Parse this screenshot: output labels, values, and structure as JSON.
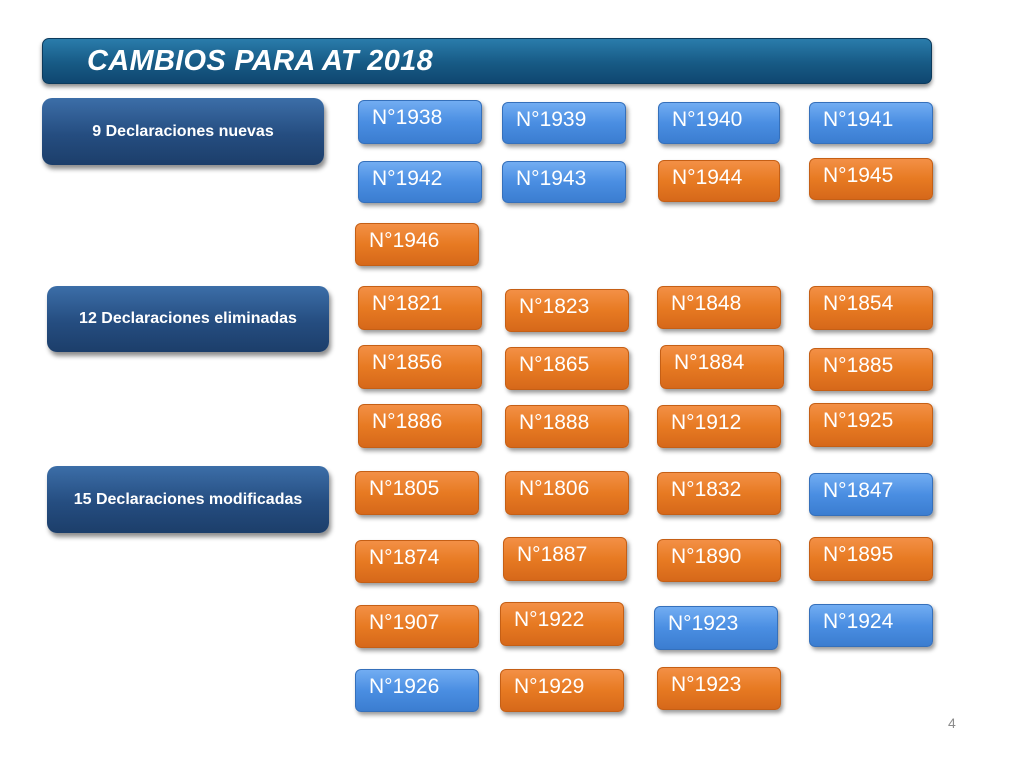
{
  "title": "CAMBIOS PARA AT 2018",
  "categories": [
    {
      "label": "9 Declaraciones nuevas"
    },
    {
      "label": "12 Declaraciones eliminadas"
    },
    {
      "label": "15 Declaraciones modificadas"
    }
  ],
  "codes": [
    {
      "label": "N°1938",
      "color": "#4a8ee2"
    },
    {
      "label": "N°1939",
      "color": "#4a8ee2"
    },
    {
      "label": "N°1940",
      "color": "#4a8ee2"
    },
    {
      "label": "N°1941",
      "color": "#4a8ee2"
    },
    {
      "label": "N°1942",
      "color": "#4a8ee2"
    },
    {
      "label": "N°1943",
      "color": "#4a8ee2"
    },
    {
      "label": "N°1944",
      "color": "#e77a22"
    },
    {
      "label": "N°1945",
      "color": "#e77a22"
    },
    {
      "label": "N°1946",
      "color": "#e77a22"
    },
    {
      "label": "N°1821",
      "color": "#e77a22"
    },
    {
      "label": "N°1823",
      "color": "#e77a22"
    },
    {
      "label": "N°1848",
      "color": "#e77a22"
    },
    {
      "label": "N°1854",
      "color": "#e77a22"
    },
    {
      "label": "N°1856",
      "color": "#e77a22"
    },
    {
      "label": "N°1865",
      "color": "#e77a22"
    },
    {
      "label": "N°1884",
      "color": "#e77a22"
    },
    {
      "label": "N°1885",
      "color": "#e77a22"
    },
    {
      "label": "N°1886",
      "color": "#e77a22"
    },
    {
      "label": "N°1888",
      "color": "#e77a22"
    },
    {
      "label": "N°1912",
      "color": "#e77a22"
    },
    {
      "label": "N°1925",
      "color": "#e77a22"
    },
    {
      "label": "N°1805",
      "color": "#e77a22"
    },
    {
      "label": "N°1806",
      "color": "#e77a22"
    },
    {
      "label": "N°1832",
      "color": "#e77a22"
    },
    {
      "label": "N°1847",
      "color": "#4a8ee2"
    },
    {
      "label": "N°1874",
      "color": "#e77a22"
    },
    {
      "label": "N°1887",
      "color": "#e77a22"
    },
    {
      "label": "N°1890",
      "color": "#e77a22"
    },
    {
      "label": "N°1895",
      "color": "#e77a22"
    },
    {
      "label": "N°1907",
      "color": "#e77a22"
    },
    {
      "label": "N°1922",
      "color": "#e77a22"
    },
    {
      "label": "N°1923",
      "color": "#4a8ee2"
    },
    {
      "label": "N°1924",
      "color": "#4a8ee2"
    },
    {
      "label": "N°1926",
      "color": "#4a8ee2"
    },
    {
      "label": "N°1929",
      "color": "#e77a22"
    },
    {
      "label": "N°1923",
      "color": "#e77a22"
    }
  ],
  "page_number": "4"
}
